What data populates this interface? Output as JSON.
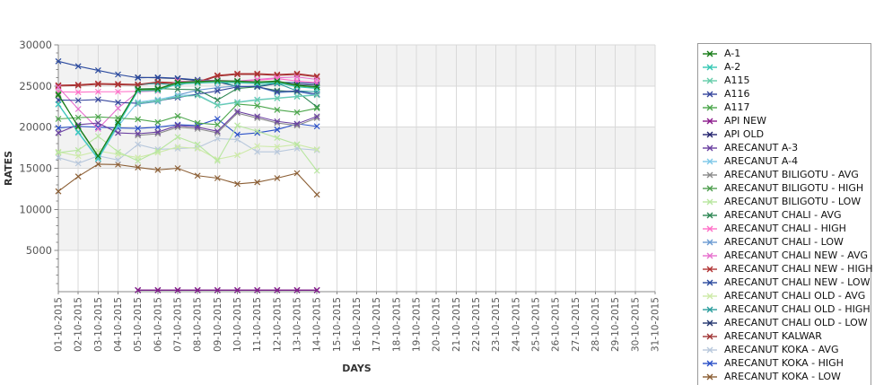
{
  "chart_data": {
    "type": "line",
    "title": "",
    "xlabel": "DAYS",
    "ylabel": "RATES",
    "ylim": [
      0,
      30000
    ],
    "y_major_ticks": [
      5000,
      10000,
      15000,
      20000,
      25000,
      30000
    ],
    "y_minor_step": 1000,
    "grid": true,
    "legend_position": "right",
    "band_fill_ranges": [
      [
        25000,
        30000
      ],
      [
        15000,
        20000
      ],
      [
        5000,
        10000
      ]
    ],
    "band_color": "#f2f2f2",
    "gridline_color": "#d9d9d9",
    "axis_color": "#888888",
    "tick_label_color": "#555555",
    "axis_title_color": "#333333",
    "x_categories": [
      "01-10-2015",
      "02-10-2015",
      "03-10-2015",
      "04-10-2015",
      "05-10-2015",
      "06-10-2015",
      "07-10-2015",
      "08-10-2015",
      "09-10-2015",
      "10-10-2015",
      "11-10-2015",
      "12-10-2015",
      "13-10-2015",
      "14-10-2015",
      "15-10-2015",
      "16-10-2015",
      "17-10-2015",
      "18-10-2015",
      "19-10-2015",
      "20-10-2015",
      "21-10-2015",
      "22-10-2015",
      "23-10-2015",
      "24-10-2015",
      "25-10-2015",
      "26-10-2015",
      "27-10-2015",
      "28-10-2015",
      "29-10-2015",
      "30-10-2015",
      "31-10-2015"
    ],
    "series": [
      {
        "name": "A-1",
        "color": "#157a15",
        "values": [
          23900,
          20100,
          16500,
          20600,
          24600,
          24650,
          25450,
          25550,
          25650,
          25600,
          25500,
          25600,
          25100,
          24900
        ]
      },
      {
        "name": "A-2",
        "color": "#35c8b4",
        "values": [
          22800,
          19400,
          16200,
          20300,
          24400,
          24450,
          25250,
          25350,
          25450,
          25400,
          25300,
          25400,
          24900,
          24700
        ]
      },
      {
        "name": "A115",
        "color": "#66cdaa",
        "values": [
          null,
          null,
          null,
          null,
          22900,
          23200,
          23700,
          23850,
          22650,
          23000,
          23300,
          23500,
          23700,
          23900
        ]
      },
      {
        "name": "A116",
        "color": "#35459c",
        "values": [
          23300,
          23250,
          23350,
          23000,
          22900,
          23200,
          23600,
          24000,
          24400,
          24900,
          24950,
          24300,
          24400,
          24000
        ]
      },
      {
        "name": "A117",
        "color": "#4ca64c",
        "values": [
          21000,
          21150,
          21250,
          21100,
          20950,
          20600,
          21350,
          20500,
          20300,
          22800,
          22600,
          22100,
          21800,
          22300
        ]
      },
      {
        "name": "API NEW",
        "color": "#8b1a8b",
        "values": [
          null,
          null,
          null,
          null,
          200,
          200,
          200,
          200,
          200,
          200,
          200,
          200,
          200,
          200
        ]
      },
      {
        "name": "API OLD",
        "color": "#23236e",
        "values": [
          null,
          null,
          null,
          null,
          170,
          170,
          170,
          170,
          170,
          170,
          170,
          170,
          170,
          170
        ]
      },
      {
        "name": "ARECANUT A-3",
        "color": "#6a3fa0",
        "values": [
          19300,
          20300,
          20500,
          19300,
          19200,
          19400,
          20200,
          20000,
          19500,
          21900,
          21300,
          20700,
          20400,
          21300
        ]
      },
      {
        "name": "ARECANUT A-4",
        "color": "#7ec8e8",
        "values": [
          22750,
          19300,
          16100,
          20100,
          23050,
          23350,
          23850,
          23950,
          22700,
          23050,
          23350,
          23550,
          23750,
          23950
        ]
      },
      {
        "name": "ARECANUT BILIGOTU - AVG",
        "color": "#8a8a8a",
        "values": [
          null,
          null,
          null,
          null,
          19000,
          19200,
          20000,
          19800,
          19300,
          21700,
          21100,
          20500,
          20200,
          21100
        ]
      },
      {
        "name": "ARECANUT BILIGOTU - HIGH",
        "color": "#4e9e4e",
        "values": [
          24050,
          20000,
          16400,
          20500,
          24500,
          24550,
          25350,
          25450,
          25550,
          25500,
          25400,
          25500,
          25000,
          24800
        ]
      },
      {
        "name": "ARECANUT BILIGOTU - LOW",
        "color": "#b8e6a0",
        "values": [
          16900,
          17200,
          18900,
          17000,
          15900,
          17100,
          18800,
          17900,
          15900,
          20200,
          19500,
          18700,
          17900,
          14700
        ]
      },
      {
        "name": "ARECANUT CHALI - AVG",
        "color": "#2d8653",
        "values": [
          null,
          null,
          null,
          null,
          24650,
          24700,
          24600,
          24550,
          23300,
          24700,
          24900,
          24450,
          24300,
          22450
        ]
      },
      {
        "name": "ARECANUT CHALI - HIGH",
        "color": "#ff6ec7",
        "values": [
          24300,
          24250,
          24300,
          24300,
          24350,
          24400,
          25600,
          25500,
          25450,
          25500,
          25700,
          25900,
          25600,
          25400
        ]
      },
      {
        "name": "ARECANUT CHALI - LOW",
        "color": "#6b9bd2",
        "values": [
          null,
          null,
          null,
          null,
          22800,
          23100,
          23900,
          24500,
          24800,
          25000,
          24900,
          24200,
          24300,
          23900
        ]
      },
      {
        "name": "ARECANUT CHALI NEW - AVG",
        "color": "#e670ce",
        "values": [
          24850,
          22200,
          19800,
          22300,
          24300,
          24400,
          25500,
          25600,
          25700,
          25600,
          25800,
          26000,
          26100,
          25800
        ]
      },
      {
        "name": "ARECANUT CHALI NEW - HIGH",
        "color": "#b03232",
        "values": [
          25100,
          25150,
          25300,
          25250,
          25200,
          25500,
          25400,
          25500,
          26300,
          26500,
          26500,
          26400,
          26500,
          26200
        ]
      },
      {
        "name": "ARECANUT CHALI NEW - LOW",
        "color": "#2b4a9e",
        "values": [
          28000,
          27400,
          26900,
          26400,
          26000,
          26050,
          25950,
          25750,
          25650,
          25600,
          25500,
          25450,
          25400,
          25300
        ]
      },
      {
        "name": "ARECANUT CHALI OLD - AVG",
        "color": "#cdeaa8",
        "values": [
          17000,
          16500,
          17100,
          16700,
          16300,
          16900,
          17600,
          17400,
          16100,
          16600,
          17700,
          17600,
          17900,
          17300
        ]
      },
      {
        "name": "ARECANUT CHALI OLD - HIGH",
        "color": "#2a9d9d",
        "values": [
          null,
          null,
          null,
          null,
          25200,
          25300,
          25100,
          25600,
          25700,
          24900,
          25000,
          25350,
          24400,
          24300
        ]
      },
      {
        "name": "ARECANUT CHALI OLD - LOW",
        "color": "#23356e",
        "values": [
          null,
          null,
          null,
          null,
          26050,
          26000,
          25900,
          25650,
          25500,
          24950,
          24900,
          25300,
          25200,
          25100
        ]
      },
      {
        "name": "ARECANUT KALWAR",
        "color": "#a03535",
        "values": [
          25000,
          25050,
          25200,
          25150,
          25100,
          25400,
          25300,
          25400,
          26200,
          26400,
          26400,
          26300,
          26400,
          26100
        ]
      },
      {
        "name": "ARECANUT KOKA - AVG",
        "color": "#b8c8dc",
        "values": [
          16300,
          15600,
          16500,
          16000,
          17900,
          17300,
          17400,
          17500,
          18600,
          18500,
          17000,
          17000,
          17400,
          17200
        ]
      },
      {
        "name": "ARECANUT KOKA - HIGH",
        "color": "#2a50c8",
        "values": [
          19900,
          20100,
          20000,
          19900,
          19850,
          20000,
          20300,
          20200,
          21000,
          19100,
          19300,
          19700,
          20400,
          20100
        ]
      },
      {
        "name": "ARECANUT KOKA - LOW",
        "color": "#8b5e34",
        "values": [
          12200,
          14000,
          15500,
          15450,
          15100,
          14800,
          15000,
          14100,
          13800,
          13100,
          13300,
          13800,
          14400,
          11800
        ]
      }
    ]
  }
}
